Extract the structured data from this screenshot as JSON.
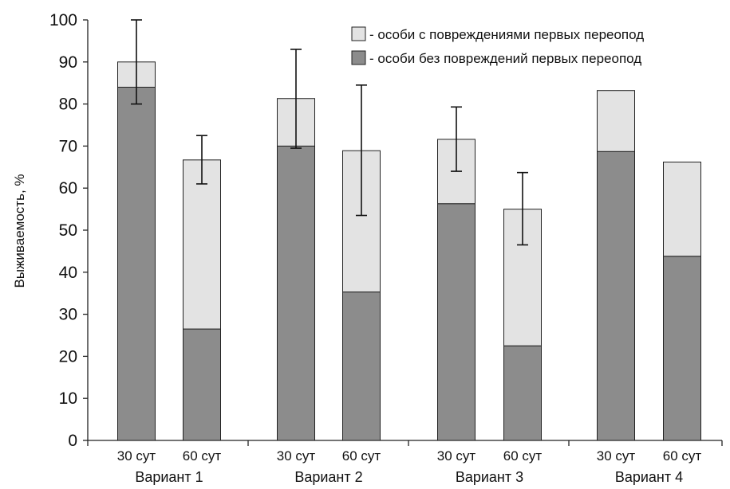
{
  "chart_data": {
    "type": "bar",
    "stacked": true,
    "title": "",
    "xlabel": "",
    "ylabel": "Выживаемость, %",
    "ylim": [
      0,
      100
    ],
    "yticks": [
      0,
      10,
      20,
      30,
      40,
      50,
      60,
      70,
      80,
      90,
      100
    ],
    "ytick_labels": [
      "0",
      "10",
      "20",
      "30",
      "40",
      "50",
      "60",
      "70",
      "80",
      "90",
      "100"
    ],
    "groups": [
      "Вариант 1",
      "Вариант 2",
      "Вариант 3",
      "Вариант 4"
    ],
    "categories": [
      "30 сут",
      "60 сут",
      "30 сут",
      "60 сут",
      "30 сут",
      "60 сут",
      "30 сут",
      "60 сут"
    ],
    "category_group": [
      0,
      0,
      1,
      1,
      2,
      2,
      3,
      3
    ],
    "series": [
      {
        "name": "- особи без повреждений первых переопод",
        "color": "#8c8c8c",
        "values": [
          84,
          26.5,
          70,
          35.3,
          56.3,
          22.5,
          68.7,
          43.8
        ]
      },
      {
        "name": "- особи с повреждениями первых переопод",
        "color": "#e3e3e3",
        "values": [
          6,
          40.2,
          11.3,
          33.6,
          15.3,
          32.5,
          14.5,
          22.4
        ]
      }
    ],
    "totals": [
      90,
      66.7,
      81.3,
      68.9,
      71.6,
      55,
      83.2,
      66.2
    ],
    "error_bars": [
      {
        "index": 0,
        "low": 80,
        "high": 100
      },
      {
        "index": 1,
        "low": 61,
        "high": 72.5
      },
      {
        "index": 2,
        "low": 69.5,
        "high": 93
      },
      {
        "index": 3,
        "low": 53.5,
        "high": 84.5
      },
      {
        "index": 4,
        "low": 64,
        "high": 79.3
      },
      {
        "index": 5,
        "low": 46.5,
        "high": 63.7
      }
    ],
    "legend": {
      "position": "top-right",
      "entries": [
        {
          "label": "- особи с повреждениями первых переопод",
          "color": "#e3e3e3"
        },
        {
          "label": "- особи без повреждений первых переопод",
          "color": "#8c8c8c"
        }
      ]
    },
    "grid": false
  }
}
